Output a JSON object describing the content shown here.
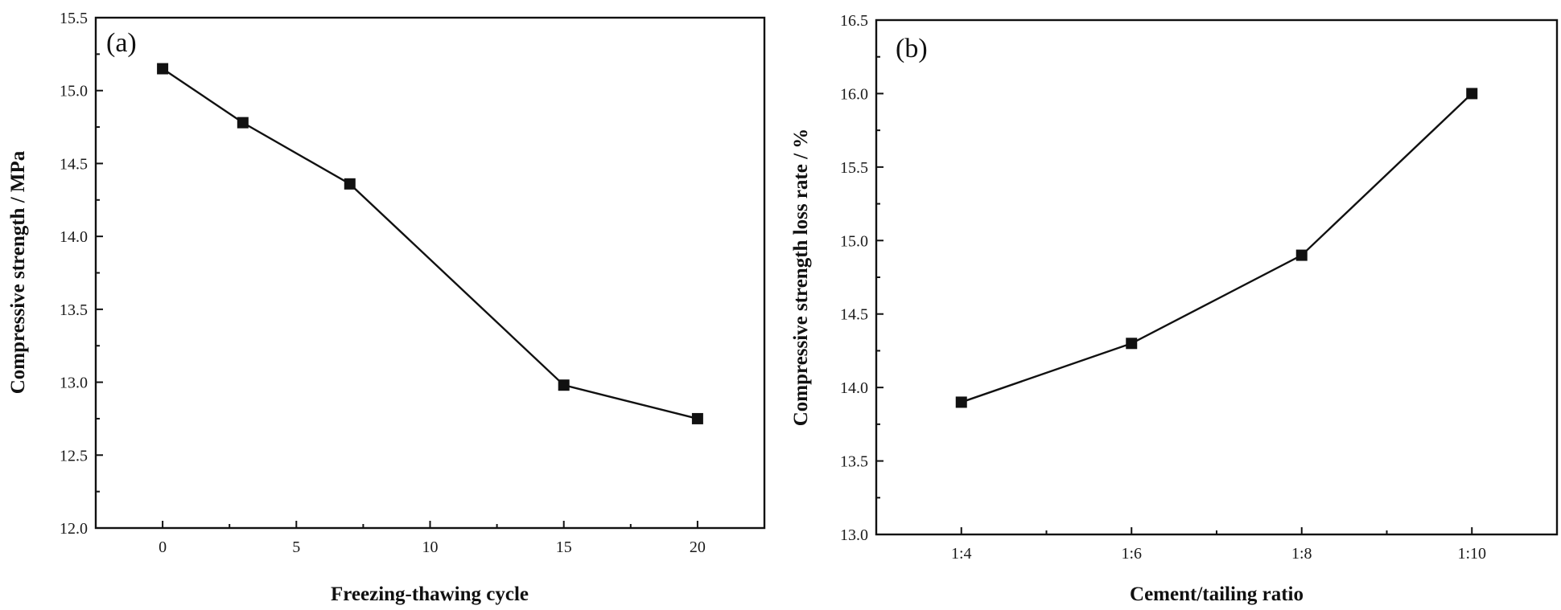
{
  "chart_data": [
    {
      "type": "line",
      "panel_label": "(a)",
      "title": "",
      "xlabel": "Freezing-thawing cycle",
      "ylabel": "Compressive strength / MPa",
      "x": [
        0,
        3,
        7,
        15,
        20
      ],
      "series": [
        {
          "name": "Compressive strength",
          "values": [
            15.15,
            14.78,
            14.36,
            12.98,
            12.75
          ]
        }
      ],
      "xlim": [
        -2.5,
        22.5
      ],
      "ylim": [
        12.0,
        15.5
      ],
      "xticks": [
        0,
        5,
        10,
        15,
        20
      ],
      "xtick_labels": [
        "0",
        "5",
        "10",
        "15",
        "20"
      ],
      "xminor_ticks": [
        2.5,
        7.5,
        12.5,
        17.5
      ],
      "yticks": [
        12.0,
        12.5,
        13.0,
        13.5,
        14.0,
        14.5,
        15.0,
        15.5
      ],
      "ytick_labels": [
        "12.0",
        "12.5",
        "13.0",
        "13.5",
        "14.0",
        "14.5",
        "15.0",
        "15.5"
      ],
      "yminor_ticks": [
        12.25,
        12.75,
        13.25,
        13.75,
        14.25,
        14.75,
        15.25
      ],
      "grid": false,
      "marker": "square"
    },
    {
      "type": "line",
      "panel_label": "(b)",
      "title": "",
      "xlabel": "Cement/tailing ratio",
      "ylabel": "Compressive strength loss rate / %",
      "categories": [
        "1:4",
        "1:6",
        "1:8",
        "1:10"
      ],
      "x": [
        1,
        2,
        3,
        4
      ],
      "series": [
        {
          "name": "Compressive strength loss rate",
          "values": [
            13.9,
            14.3,
            14.9,
            16.0
          ]
        }
      ],
      "xlim": [
        0.5,
        4.5
      ],
      "ylim": [
        13.0,
        16.5
      ],
      "xticks": [
        1,
        2,
        3,
        4
      ],
      "xtick_labels": [
        "1:4",
        "1:6",
        "1:8",
        "1:10"
      ],
      "xminor_ticks": [
        1.5,
        2.5,
        3.5
      ],
      "yticks": [
        13.0,
        13.5,
        14.0,
        14.5,
        15.0,
        15.5,
        16.0,
        16.5
      ],
      "ytick_labels": [
        "13.0",
        "13.5",
        "14.0",
        "14.5",
        "15.0",
        "15.5",
        "16.0",
        "16.5"
      ],
      "yminor_ticks": [
        13.25,
        13.75,
        14.25,
        14.75,
        15.25,
        15.75,
        16.25
      ],
      "grid": false,
      "marker": "square"
    }
  ]
}
